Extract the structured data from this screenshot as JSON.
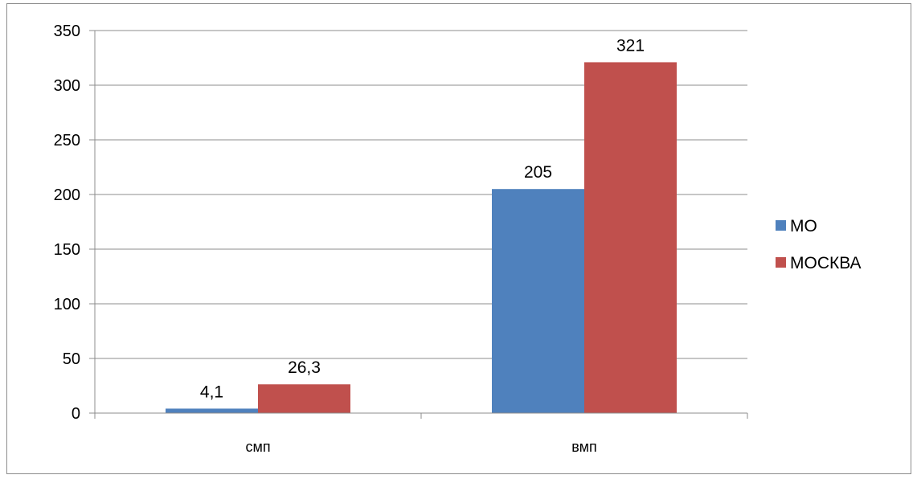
{
  "chart_data": {
    "type": "bar",
    "title": "",
    "xlabel": "",
    "ylabel": "",
    "categories": [
      "смп",
      "вмп"
    ],
    "series": [
      {
        "name": "МО",
        "color": "#4f81bd",
        "values": [
          4.1,
          205
        ],
        "labels": [
          "4,1",
          "205"
        ]
      },
      {
        "name": "МОСКВА",
        "color": "#c0504d",
        "values": [
          26.3,
          321
        ],
        "labels": [
          "26,3",
          "321"
        ]
      }
    ],
    "ylim": [
      0,
      350
    ],
    "yticks": [
      0,
      50,
      100,
      150,
      200,
      250,
      300,
      350
    ],
    "grid": true,
    "legend": "right"
  }
}
